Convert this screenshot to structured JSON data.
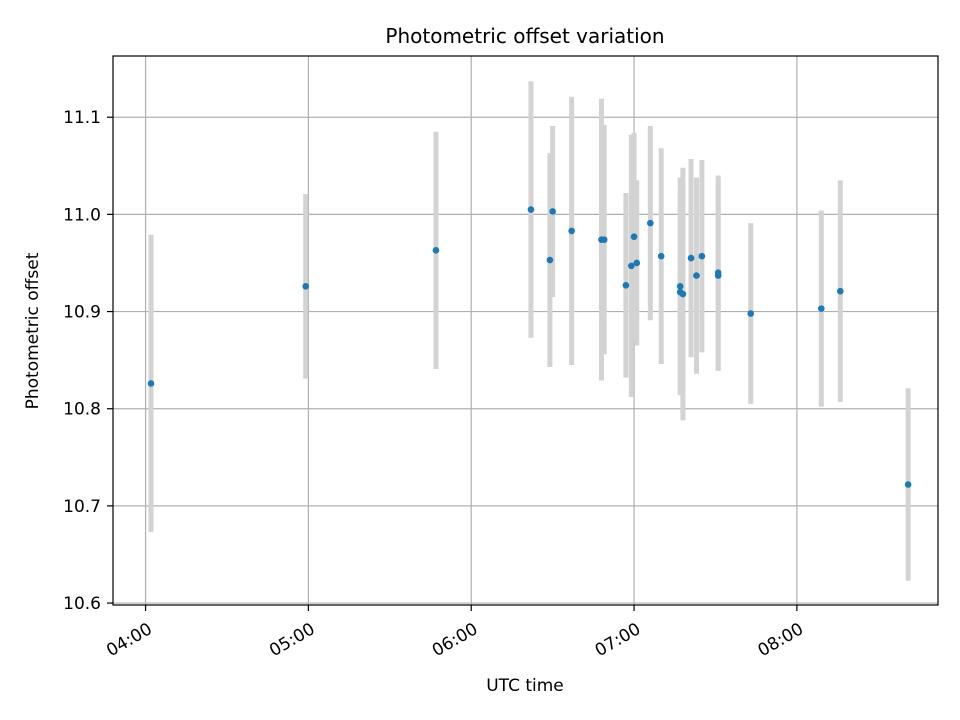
{
  "chart_data": {
    "type": "scatter",
    "title": "Photometric offset variation",
    "xlabel": "UTC time",
    "ylabel": "Photometric offset",
    "xlim": [
      "03:48",
      "08:52"
    ],
    "ylim": [
      10.598,
      11.163
    ],
    "x_ticks": [
      "04:00",
      "05:00",
      "06:00",
      "07:00",
      "08:00"
    ],
    "y_ticks": [
      "10.6",
      "10.7",
      "10.8",
      "10.9",
      "11.0",
      "11.1"
    ],
    "grid": true,
    "colors": {
      "point": "#1f77b4",
      "errorbar": "#d3d3d3",
      "grid": "#b0b0b0"
    },
    "points": [
      {
        "time": "04:02",
        "offset": 10.826,
        "err": 0.153
      },
      {
        "time": "04:59",
        "offset": 10.926,
        "err": 0.095
      },
      {
        "time": "05:47",
        "offset": 10.963,
        "err": 0.122
      },
      {
        "time": "06:22",
        "offset": 11.005,
        "err": 0.132
      },
      {
        "time": "06:29",
        "offset": 10.953,
        "err": 0.11
      },
      {
        "time": "06:30",
        "offset": 11.003,
        "err": 0.088
      },
      {
        "time": "06:37",
        "offset": 10.983,
        "err": 0.138
      },
      {
        "time": "06:48",
        "offset": 10.974,
        "err": 0.145
      },
      {
        "time": "06:49",
        "offset": 10.974,
        "err": 0.118
      },
      {
        "time": "06:57",
        "offset": 10.927,
        "err": 0.095
      },
      {
        "time": "06:59",
        "offset": 10.947,
        "err": 0.135
      },
      {
        "time": "07:00",
        "offset": 10.977,
        "err": 0.107
      },
      {
        "time": "07:01",
        "offset": 10.95,
        "err": 0.085
      },
      {
        "time": "07:06",
        "offset": 10.991,
        "err": 0.1
      },
      {
        "time": "07:10",
        "offset": 10.957,
        "err": 0.111
      },
      {
        "time": "07:17",
        "offset": 10.926,
        "err": 0.112
      },
      {
        "time": "07:17",
        "offset": 10.92,
        "err": 0.105
      },
      {
        "time": "07:18",
        "offset": 10.918,
        "err": 0.13
      },
      {
        "time": "07:21",
        "offset": 10.955,
        "err": 0.102
      },
      {
        "time": "07:23",
        "offset": 10.937,
        "err": 0.101
      },
      {
        "time": "07:25",
        "offset": 10.957,
        "err": 0.099
      },
      {
        "time": "07:31",
        "offset": 10.937,
        "err": 0.098
      },
      {
        "time": "07:31",
        "offset": 10.94,
        "err": 0.1
      },
      {
        "time": "07:43",
        "offset": 10.898,
        "err": 0.093
      },
      {
        "time": "08:09",
        "offset": 10.903,
        "err": 0.101
      },
      {
        "time": "08:16",
        "offset": 10.921,
        "err": 0.114
      },
      {
        "time": "08:41",
        "offset": 10.722,
        "err": 0.099
      }
    ]
  }
}
